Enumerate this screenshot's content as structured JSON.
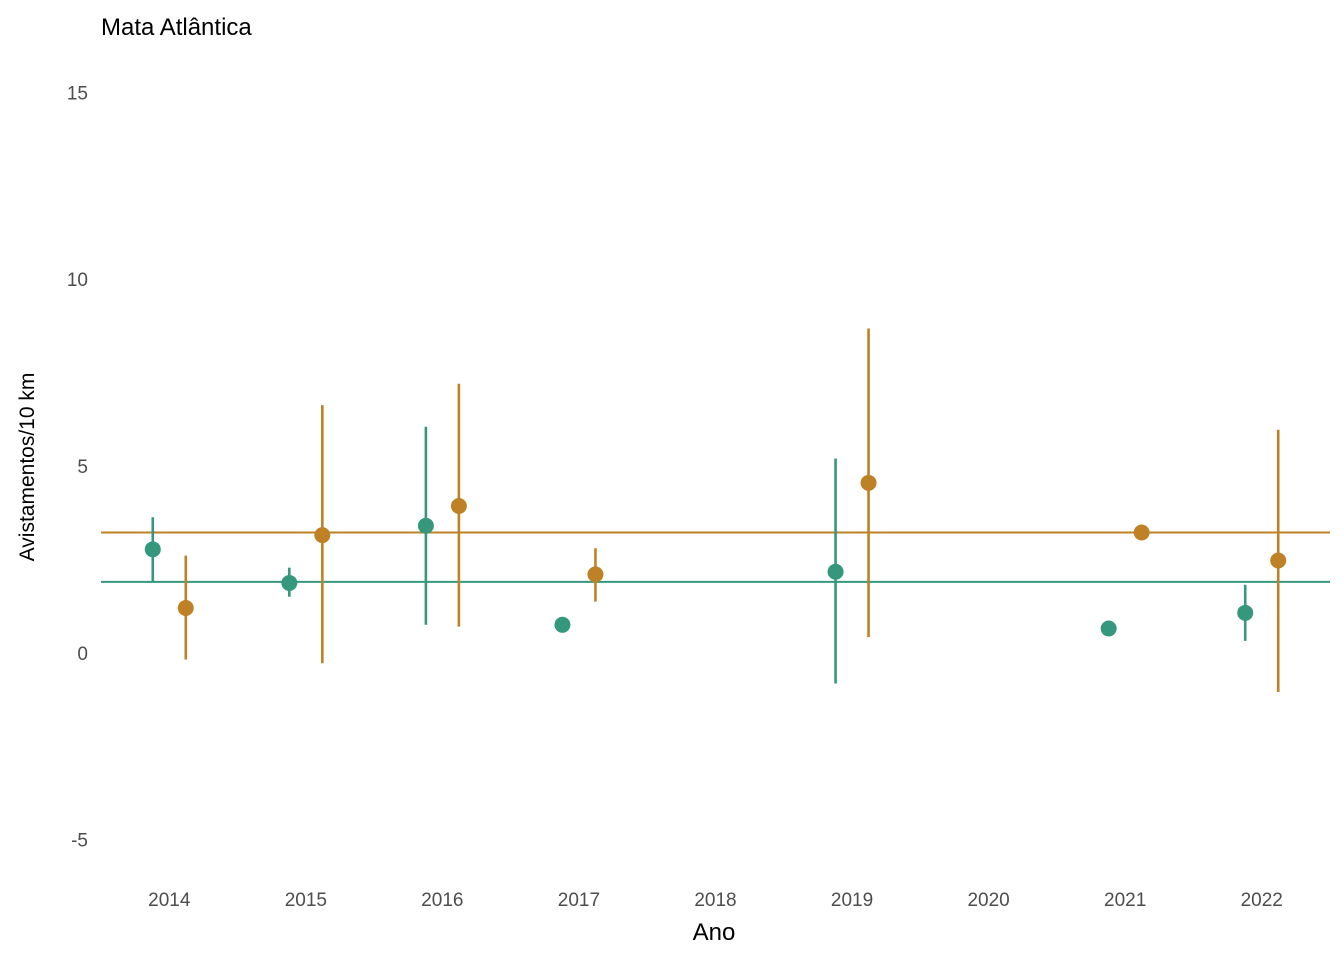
{
  "chart_data": {
    "type": "scatter",
    "title": "Mata Atlântica",
    "xlabel": "Ano",
    "ylabel": "Avistamentos/10 km",
    "ylim": [
      -6,
      16
    ],
    "yticks": [
      -5,
      0,
      5,
      10,
      15
    ],
    "categories": [
      "2014",
      "2015",
      "2016",
      "2017",
      "2018",
      "2019",
      "2020",
      "2021",
      "2022"
    ],
    "grid": false,
    "legend": "none",
    "series": [
      {
        "color": "#35977c",
        "dodge": -1,
        "reference_line": 1.9,
        "points": [
          {
            "x": "2014",
            "y": 2.77,
            "low": 1.9,
            "high": 3.63
          },
          {
            "x": "2015",
            "y": 1.87,
            "low": 1.5,
            "high": 2.28
          },
          {
            "x": "2016",
            "y": 3.4,
            "low": 0.75,
            "high": 6.05
          },
          {
            "x": "2017",
            "y": 0.75,
            "low": 0.75,
            "high": 0.75
          },
          {
            "x": "2019",
            "y": 2.17,
            "low": -0.82,
            "high": 5.2
          },
          {
            "x": "2021",
            "y": 0.65,
            "low": 0.65,
            "high": 0.65
          },
          {
            "x": "2022",
            "y": 1.07,
            "low": 0.32,
            "high": 1.82
          }
        ]
      },
      {
        "color": "#bf8125",
        "dodge": 1,
        "reference_line": 3.22,
        "points": [
          {
            "x": "2014",
            "y": 1.2,
            "low": -0.18,
            "high": 2.6
          },
          {
            "x": "2015",
            "y": 3.15,
            "low": -0.28,
            "high": 6.63
          },
          {
            "x": "2016",
            "y": 3.93,
            "low": 0.7,
            "high": 7.2
          },
          {
            "x": "2017",
            "y": 2.1,
            "low": 1.37,
            "high": 2.8
          },
          {
            "x": "2019",
            "y": 4.55,
            "low": 0.42,
            "high": 8.68
          },
          {
            "x": "2021",
            "y": 3.22,
            "low": 3.22,
            "high": 3.22
          },
          {
            "x": "2022",
            "y": 2.47,
            "low": -1.05,
            "high": 5.97
          }
        ]
      }
    ]
  }
}
